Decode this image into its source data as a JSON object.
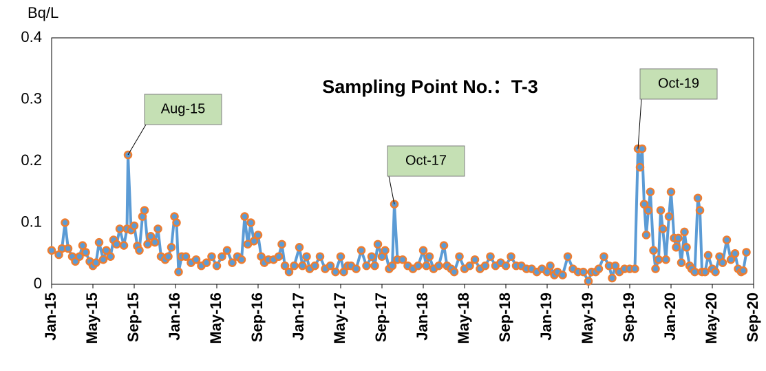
{
  "chart_data": {
    "type": "line",
    "title": "Sampling Point No.：T-3",
    "y_label": "Bq/L",
    "ylim": [
      0,
      0.4
    ],
    "yticks": [
      0,
      0.1,
      0.2,
      0.3,
      0.4
    ],
    "xlim": [
      0,
      68
    ],
    "xticks": [
      {
        "value": 0,
        "label": "Jan-15"
      },
      {
        "value": 4,
        "label": "May-15"
      },
      {
        "value": 8,
        "label": "Sep-15"
      },
      {
        "value": 12,
        "label": "Jan-16"
      },
      {
        "value": 16,
        "label": "May-16"
      },
      {
        "value": 20,
        "label": "Sep-16"
      },
      {
        "value": 24,
        "label": "Jan-17"
      },
      {
        "value": 28,
        "label": "May-17"
      },
      {
        "value": 32,
        "label": "Sep-17"
      },
      {
        "value": 36,
        "label": "Jan-18"
      },
      {
        "value": 40,
        "label": "May-18"
      },
      {
        "value": 44,
        "label": "Sep-18"
      },
      {
        "value": 48,
        "label": "Jan-19"
      },
      {
        "value": 52,
        "label": "May-19"
      },
      {
        "value": 56,
        "label": "Sep-19"
      },
      {
        "value": 60,
        "label": "Jan-20"
      },
      {
        "value": 64,
        "label": "May-20"
      },
      {
        "value": 68,
        "label": "Sep-20"
      }
    ],
    "annotations": [
      {
        "text": "Aug-15",
        "x": 7.4,
        "y": 0.21
      },
      {
        "text": "Oct-17",
        "x": 33.2,
        "y": 0.13
      },
      {
        "text": "Oct-19",
        "x": 56.8,
        "y": 0.22
      }
    ],
    "series": [
      {
        "color": "#5b9bd5",
        "marker_color": "#ed7d31",
        "x": [
          0,
          0.7,
          1.0,
          1.3,
          1.6,
          2.0,
          2.3,
          2.7,
          3.0,
          3.3,
          3.7,
          4.0,
          4.3,
          4.6,
          5.0,
          5.3,
          5.7,
          6.0,
          6.3,
          6.6,
          7.0,
          7.3,
          7.4,
          7.7,
          8.0,
          8.3,
          8.5,
          8.8,
          9.0,
          9.3,
          9.6,
          10.0,
          10.3,
          10.6,
          11.0,
          11.3,
          11.6,
          11.9,
          12.1,
          12.3,
          12.6,
          13.0,
          13.5,
          14.0,
          14.5,
          15.0,
          15.5,
          16.0,
          16.5,
          17.0,
          17.5,
          18.0,
          18.4,
          18.7,
          19.0,
          19.3,
          19.6,
          20.0,
          20.3,
          20.6,
          21.0,
          21.5,
          22.0,
          22.3,
          22.6,
          23.0,
          23.5,
          24.0,
          24.3,
          24.7,
          25.0,
          25.5,
          26.0,
          26.5,
          27.0,
          27.5,
          28.0,
          28.3,
          28.7,
          29.0,
          29.5,
          30.0,
          30.5,
          31.0,
          31.3,
          31.6,
          32.0,
          32.3,
          32.7,
          33.0,
          33.2,
          33.5,
          34.0,
          34.5,
          35.0,
          35.5,
          36.0,
          36.3,
          36.6,
          37.0,
          37.5,
          38.0,
          38.3,
          38.7,
          39.0,
          39.5,
          40.0,
          40.5,
          41.0,
          41.5,
          42.0,
          42.5,
          43.0,
          43.5,
          44.0,
          44.5,
          45.0,
          45.5,
          46.0,
          46.5,
          47.0,
          47.5,
          48.0,
          48.3,
          48.7,
          49.0,
          49.5,
          50.0,
          50.5,
          51.0,
          51.5,
          52.0,
          52.3,
          52.7,
          53.0,
          53.5,
          54.0,
          54.3,
          54.6,
          55.0,
          55.5,
          56.0,
          56.5,
          56.8,
          57.0,
          57.2,
          57.4,
          57.6,
          57.8,
          58.0,
          58.3,
          58.5,
          58.8,
          59.0,
          59.2,
          59.5,
          59.8,
          60.0,
          60.3,
          60.5,
          60.7,
          61.0,
          61.3,
          61.5,
          61.8,
          62.0,
          62.3,
          62.6,
          62.8,
          63.0,
          63.3,
          63.6,
          64.0,
          64.3,
          64.7,
          65.0,
          65.4,
          65.8,
          66.2,
          66.5,
          66.8,
          67.0,
          67.3
        ],
        "values": [
          0.055,
          0.048,
          0.058,
          0.1,
          0.058,
          0.045,
          0.037,
          0.045,
          0.063,
          0.052,
          0.037,
          0.03,
          0.035,
          0.068,
          0.04,
          0.055,
          0.045,
          0.072,
          0.065,
          0.09,
          0.063,
          0.09,
          0.21,
          0.088,
          0.095,
          0.062,
          0.055,
          0.11,
          0.12,
          0.065,
          0.078,
          0.068,
          0.09,
          0.045,
          0.04,
          0.045,
          0.06,
          0.11,
          0.1,
          0.02,
          0.045,
          0.045,
          0.035,
          0.04,
          0.03,
          0.035,
          0.045,
          0.03,
          0.045,
          0.055,
          0.035,
          0.045,
          0.04,
          0.11,
          0.065,
          0.1,
          0.07,
          0.08,
          0.045,
          0.035,
          0.04,
          0.04,
          0.045,
          0.065,
          0.03,
          0.02,
          0.03,
          0.06,
          0.03,
          0.045,
          0.025,
          0.03,
          0.045,
          0.025,
          0.03,
          0.02,
          0.045,
          0.02,
          0.03,
          0.03,
          0.025,
          0.055,
          0.03,
          0.045,
          0.03,
          0.065,
          0.045,
          0.055,
          0.025,
          0.03,
          0.13,
          0.04,
          0.04,
          0.03,
          0.025,
          0.03,
          0.055,
          0.03,
          0.045,
          0.025,
          0.03,
          0.063,
          0.03,
          0.025,
          0.02,
          0.045,
          0.025,
          0.03,
          0.04,
          0.025,
          0.03,
          0.045,
          0.03,
          0.035,
          0.03,
          0.045,
          0.03,
          0.03,
          0.025,
          0.025,
          0.02,
          0.025,
          0.02,
          0.03,
          0.015,
          0.02,
          0.015,
          0.045,
          0.025,
          0.02,
          0.02,
          0.005,
          0.02,
          0.02,
          0.025,
          0.045,
          0.03,
          0.01,
          0.03,
          0.02,
          0.025,
          0.025,
          0.025,
          0.22,
          0.19,
          0.22,
          0.13,
          0.08,
          0.12,
          0.15,
          0.055,
          0.025,
          0.04,
          0.12,
          0.09,
          0.04,
          0.11,
          0.15,
          0.075,
          0.06,
          0.075,
          0.035,
          0.085,
          0.06,
          0.03,
          0.025,
          0.02,
          0.14,
          0.12,
          0.02,
          0.02,
          0.047,
          0.025,
          0.02,
          0.045,
          0.035,
          0.072,
          0.04,
          0.05,
          0.025,
          0.02,
          0.022,
          0.052
        ]
      }
    ]
  }
}
